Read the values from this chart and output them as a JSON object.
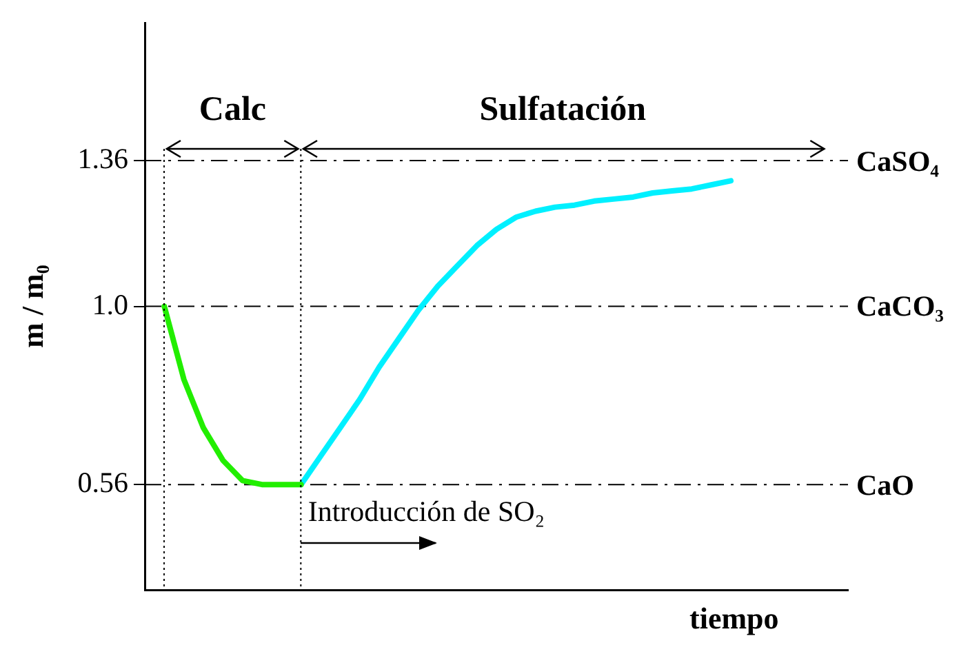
{
  "chart_data": {
    "type": "line",
    "xlabel": "tiempo",
    "ylabel": "m / m₀",
    "categories": [
      null,
      null,
      null,
      null,
      null,
      null,
      null,
      null,
      null,
      null,
      null,
      null,
      null,
      null,
      null,
      null,
      null,
      null,
      null,
      null,
      null,
      null,
      null,
      null,
      null,
      null,
      null,
      null,
      null,
      null,
      null,
      null,
      null,
      null,
      null,
      null,
      null
    ],
    "ylim": [
      0.3,
      1.7
    ],
    "yticks": [
      0.56,
      {
        "value": 1,
        "label": "1.0"
      },
      1.36
    ],
    "grid": false,
    "legend": false,
    "marker": "none",
    "line_style": "solid",
    "series": [
      {
        "color": "#22ee00",
        "values": [
          null,
          1.0,
          0.82,
          0.7,
          0.62,
          0.57,
          0.56,
          0.56,
          0.56,
          null,
          null,
          null,
          null,
          null,
          null,
          null,
          null,
          null,
          null,
          null,
          null,
          null,
          null,
          null,
          null,
          null,
          null,
          null,
          null,
          null,
          null,
          null,
          null,
          null,
          null,
          null,
          null
        ]
      },
      {
        "color": "#00f0ff",
        "values": [
          null,
          null,
          null,
          null,
          null,
          null,
          null,
          null,
          0.56,
          0.63,
          0.7,
          0.77,
          0.85,
          0.92,
          0.99,
          1.05,
          1.1,
          1.15,
          1.19,
          1.22,
          1.235,
          1.245,
          1.25,
          1.26,
          1.265,
          1.27,
          1.28,
          1.285,
          1.29,
          1.3,
          1.31,
          null,
          null,
          null,
          null,
          null,
          null
        ]
      }
    ],
    "ref_lines": [
      {
        "axis": "y",
        "value": 1.36,
        "label": "CaSO₄",
        "line_style": "dashed",
        "color": "#000000"
      },
      {
        "axis": "y",
        "value": 1.0,
        "label": "CaCO₃",
        "line_style": "dashed",
        "color": "#000000"
      },
      {
        "axis": "y",
        "value": 0.56,
        "label": "CaO",
        "line_style": "dashed",
        "color": "#000000"
      }
    ],
    "annotations": [
      "Calc",
      "Sulfatación",
      "Introducción de SO₂"
    ]
  }
}
